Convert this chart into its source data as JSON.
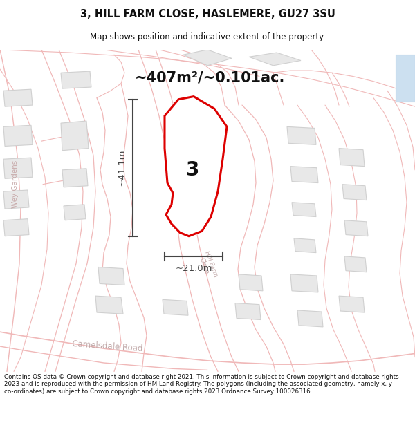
{
  "title_line1": "3, HILL FARM CLOSE, HASLEMERE, GU27 3SU",
  "title_line2": "Map shows position and indicative extent of the property.",
  "area_label": "~407m²/~0.101ac.",
  "plot_number": "3",
  "dim_width": "~21.0m",
  "dim_height": "~41.1m",
  "footnote": "Contains OS data © Crown copyright and database right 2021. This information is subject to Crown copyright and database rights 2023 and is reproduced with the permission of HM Land Registry. The polygons (including the associated geometry, namely x, y co-ordinates) are subject to Crown copyright and database rights 2023 Ordnance Survey 100026316.",
  "bg_color": "#ffffff",
  "map_bg": "#ffffff",
  "plot_fill": "#ffffff",
  "plot_edge": "#dd0000",
  "road_color": "#f0b8b8",
  "road_outline_color": "#e8a0a0",
  "building_fill": "#e8e8e8",
  "building_edge": "#d0d0d0",
  "dim_color": "#444444",
  "text_color": "#111111",
  "road_text_color": "#ccaaaa",
  "blue_rect_fill": "#cce0f0",
  "blue_rect_edge": "#aacce0"
}
